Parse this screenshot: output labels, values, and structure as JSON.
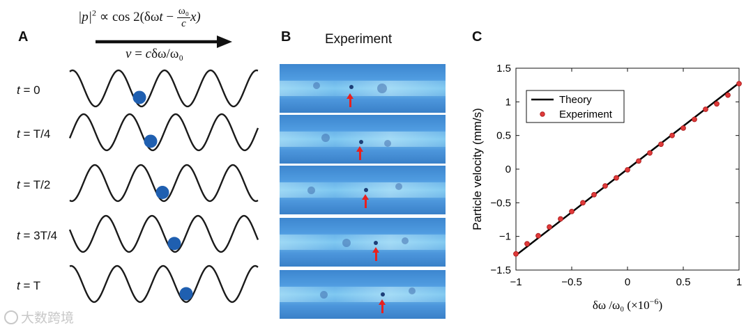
{
  "panel_a": {
    "letter": "A",
    "equation": "|p|² ∝ cos 2(δωt − (ω₀/c) x)",
    "eq_lhs": "|p|",
    "eq_sup": "2",
    "eq_mid": " ∝ cos 2(δω",
    "eq_t": "t",
    "eq_minus": " − ",
    "eq_frac_num": "ω₀",
    "eq_frac_den": "c",
    "eq_x": "x)",
    "velocity": "v = cδω/ω₀",
    "vel_v": "v",
    "vel_eq": " = ",
    "vel_c": "c",
    "vel_rest": "δω/ω₀",
    "rows": [
      {
        "t": "t",
        "rest": " = 0"
      },
      {
        "t": "t",
        "rest": " = T/4"
      },
      {
        "t": "t",
        "rest": " = T/2"
      },
      {
        "t": "t",
        "rest": " = 3T/4"
      },
      {
        "t": "t",
        "rest": " = T"
      }
    ],
    "wave_color": "#1a1a1a",
    "particle_color": "#1f5fb0"
  },
  "panel_b": {
    "letter": "B",
    "title": "Experiment",
    "arrow_color": "#e8201e"
  },
  "panel_c": {
    "letter": "C"
  },
  "watermark": "大数跨境",
  "chart_data": {
    "type": "scatter",
    "xlabel": "δω /ω₀  (×10⁻⁶)",
    "xlabel_main": "δω /ω₀  (×10",
    "xlabel_exp": "−6",
    "xlabel_close": ")",
    "ylabel": "Particle velocity (mm/s)",
    "xlim": [
      -1,
      1
    ],
    "ylim": [
      -1.5,
      1.5
    ],
    "xticks": [
      -1,
      -0.5,
      0,
      0.5,
      1
    ],
    "xtick_labels": [
      "−1",
      "−0.5",
      "0",
      "0.5",
      "1"
    ],
    "yticks": [
      -1.5,
      -1,
      -0.5,
      0,
      0.5,
      1,
      1.5
    ],
    "ytick_labels": [
      "−1.5",
      "−1",
      "−0.5",
      "0",
      "0.5",
      "1",
      "1.5"
    ],
    "grid": false,
    "legend_position": "top-left",
    "series": [
      {
        "name": "Theory",
        "kind": "line",
        "color": "#000000",
        "x": [
          -1,
          1
        ],
        "y": [
          -1.28,
          1.28
        ]
      },
      {
        "name": "Experiment",
        "kind": "scatter",
        "color": "#e03a3a",
        "x": [
          -1.0,
          -0.9,
          -0.8,
          -0.7,
          -0.6,
          -0.5,
          -0.4,
          -0.3,
          -0.2,
          -0.1,
          0.0,
          0.1,
          0.2,
          0.3,
          0.4,
          0.5,
          0.6,
          0.7,
          0.8,
          0.9,
          1.0
        ],
        "y": [
          -1.26,
          -1.11,
          -0.99,
          -0.86,
          -0.74,
          -0.63,
          -0.5,
          -0.38,
          -0.25,
          -0.13,
          -0.01,
          0.12,
          0.24,
          0.37,
          0.5,
          0.61,
          0.74,
          0.89,
          0.97,
          1.1,
          1.27
        ]
      }
    ]
  }
}
